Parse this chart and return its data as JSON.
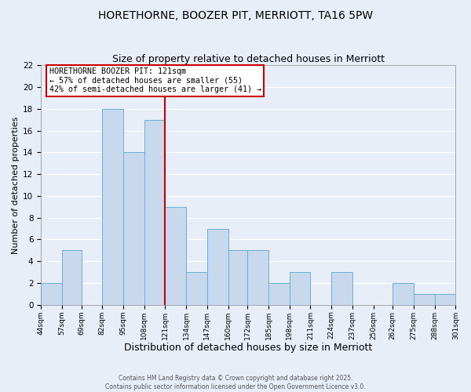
{
  "title": "HORETHORNE, BOOZER PIT, MERRIOTT, TA16 5PW",
  "subtitle": "Size of property relative to detached houses in Merriott",
  "xlabel": "Distribution of detached houses by size in Merriott",
  "ylabel": "Number of detached properties",
  "bin_edges": [
    44,
    57,
    69,
    82,
    95,
    108,
    121,
    134,
    147,
    160,
    172,
    185,
    198,
    211,
    224,
    237,
    250,
    262,
    275,
    288,
    301
  ],
  "bar_heights": [
    2,
    5,
    0,
    18,
    14,
    17,
    9,
    3,
    7,
    5,
    5,
    2,
    3,
    0,
    3,
    0,
    0,
    2,
    1,
    1
  ],
  "bar_color": "#c8d9ee",
  "bar_edge_color": "#6baed6",
  "redline_color": "#cc0000",
  "redline_x": 121,
  "ylim": [
    0,
    22
  ],
  "yticks": [
    0,
    2,
    4,
    6,
    8,
    10,
    12,
    14,
    16,
    18,
    20,
    22
  ],
  "annotation_title": "HORETHORNE BOOZER PIT: 121sqm",
  "annotation_line1": "← 57% of detached houses are smaller (55)",
  "annotation_line2": "42% of semi-detached houses are larger (41) →",
  "annotation_box_color": "#ffffff",
  "annotation_box_edge": "#cc0000",
  "background_color": "#e8eef8",
  "grid_color": "#ffffff",
  "title_fontsize": 10,
  "subtitle_fontsize": 9,
  "xlabel_fontsize": 9,
  "ylabel_fontsize": 8,
  "footer1": "Contains HM Land Registry data © Crown copyright and database right 2025.",
  "footer2": "Contains public sector information licensed under the Open Government Licence v3.0."
}
